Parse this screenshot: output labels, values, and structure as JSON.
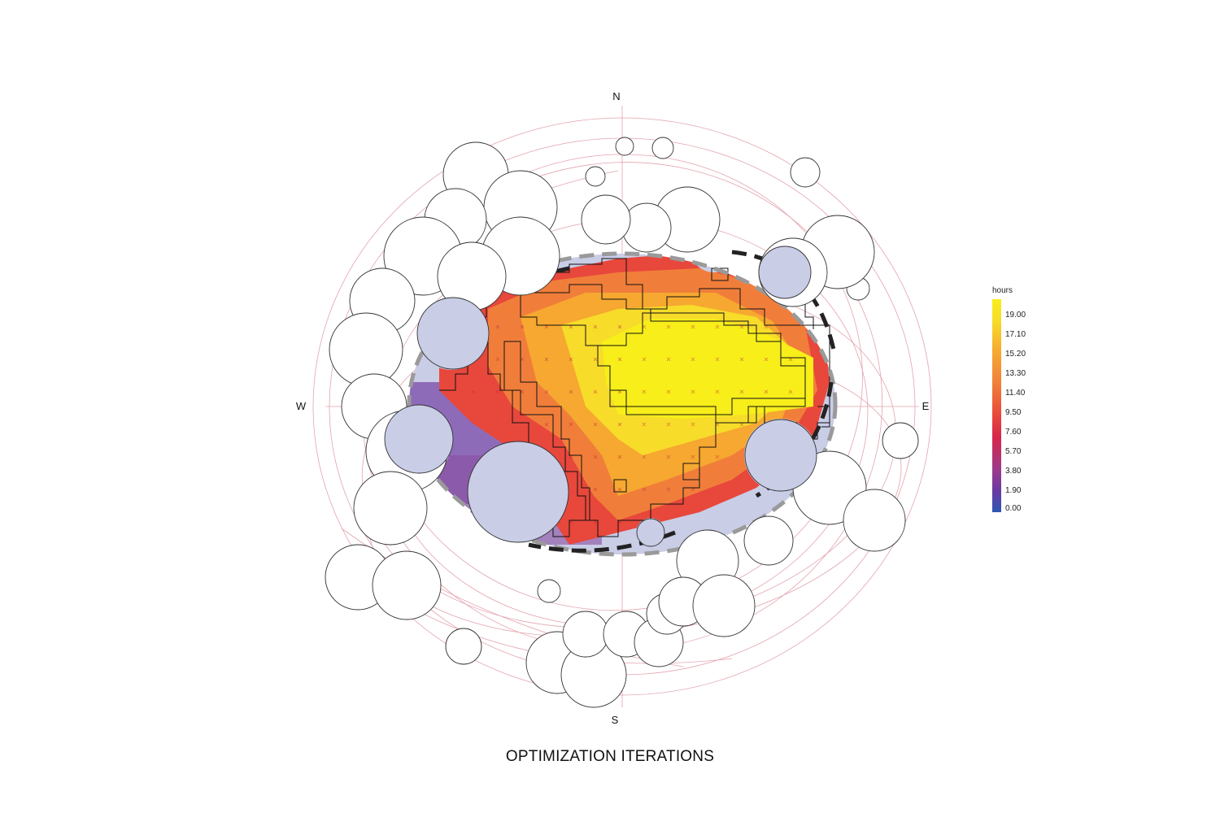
{
  "compass": {
    "north": "N",
    "south": "S",
    "west": "W",
    "east": "E"
  },
  "title": "OPTIMIZATION ITERATIONS",
  "legend": {
    "title": "hours",
    "ticks": [
      "19.00",
      "17.10",
      "15.20",
      "13.30",
      "11.40",
      "9.50",
      "7.60",
      "5.70",
      "3.80",
      "1.90",
      "0.00"
    ]
  },
  "colors": {
    "high": "#f7ee1a",
    "mid": "#f07e3a",
    "low": "#2f56b2",
    "shade": "#c9cde6",
    "sunpath": "#e3a3ad"
  }
}
